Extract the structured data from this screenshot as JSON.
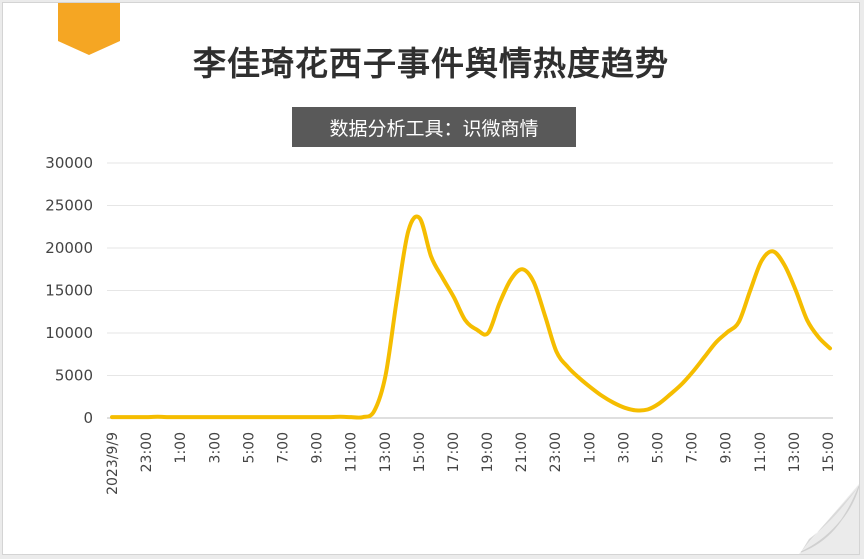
{
  "header": {
    "title": "李佳琦花西子事件舆情热度趋势",
    "source": "数据分析工具：识微商情"
  },
  "colors": {
    "line": "#f5bd00",
    "tab": "#f5a623",
    "badge": "#595959",
    "grid": "#e6e6e6"
  },
  "chart_data": {
    "type": "line",
    "title": "李佳琦花西子事件舆情热度趋势",
    "xlabel": "",
    "ylabel": "",
    "ylim": [
      0,
      30000
    ],
    "yticks": [
      "0",
      "5000",
      "10000",
      "15000",
      "20000",
      "25000",
      "30000"
    ],
    "grid": true,
    "xticks": [
      "2023/9/9",
      "23:00",
      "1:00",
      "3:00",
      "5:00",
      "7:00",
      "9:00",
      "11:00",
      "13:00",
      "15:00",
      "17:00",
      "19:00",
      "21:00",
      "23:00",
      "1:00",
      "3:00",
      "5:00",
      "7:00",
      "9:00",
      "11:00",
      "13:00",
      "15:00"
    ],
    "series": [
      {
        "name": "",
        "values": [
          100,
          100,
          100,
          100,
          150,
          100,
          100,
          100,
          100,
          100,
          100,
          100,
          100,
          100,
          100,
          100,
          100,
          100,
          100,
          100,
          150,
          100,
          100,
          800,
          5000,
          14000,
          22000,
          23500,
          19000,
          16500,
          14200,
          11500,
          10400,
          10000,
          13500,
          16300,
          17500,
          16000,
          12000,
          7800,
          6000,
          4700,
          3600,
          2600,
          1800,
          1200,
          900,
          1000,
          1700,
          2800,
          4000,
          5500,
          7200,
          8900,
          10100,
          11300,
          15000,
          18500,
          19600,
          18000,
          15000,
          11500,
          9500,
          8200
        ]
      }
    ]
  }
}
